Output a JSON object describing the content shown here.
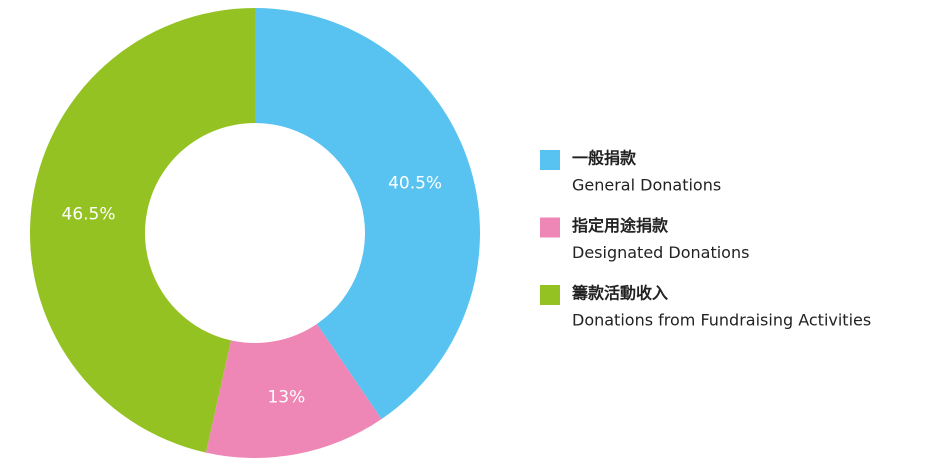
{
  "chart_data": {
    "type": "donut",
    "categories": [
      "一般捐款",
      "指定用途捐款",
      "籌款活動收入"
    ],
    "categories_en": [
      "General Donations",
      "Designated Donations",
      "Donations from Fundraising Activities"
    ],
    "values": [
      40.5,
      13,
      46.5
    ],
    "value_labels": [
      "40.5%",
      "13%",
      "46.5%"
    ],
    "colors": [
      "#58c3f1",
      "#ee87b5",
      "#95c223"
    ],
    "legend": "right"
  }
}
